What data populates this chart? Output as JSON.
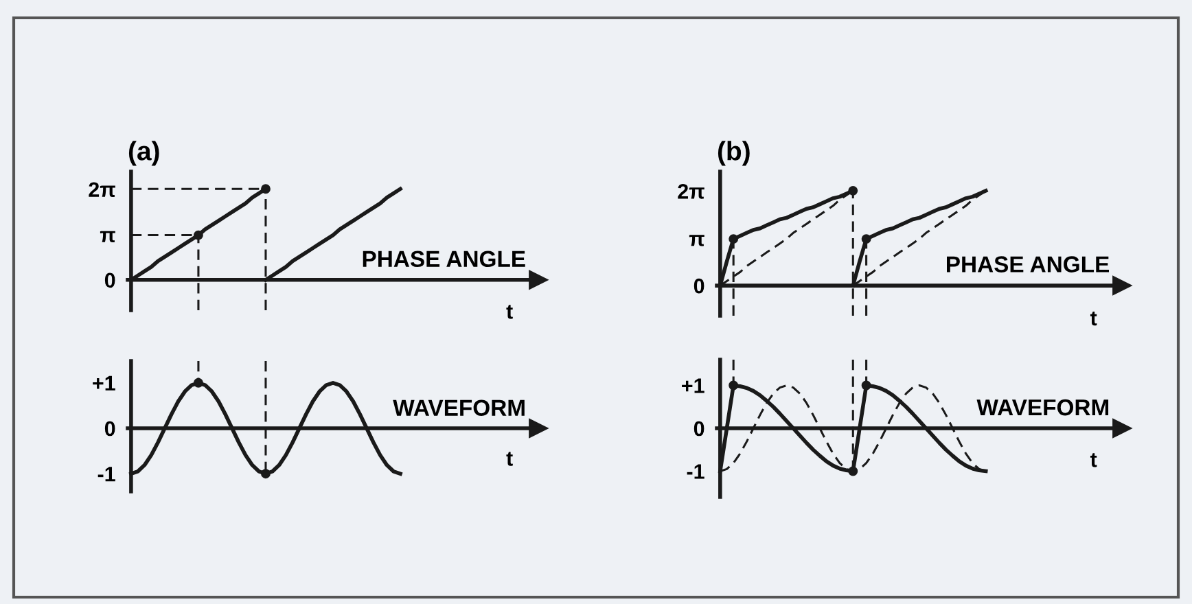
{
  "chart_data": [
    {
      "type": "line",
      "title": "(a)",
      "xlabel": "t",
      "ylabel": "PHASE ANGLE",
      "ylim": [
        -2.1,
        7.5
      ],
      "yticks": [
        0,
        {
          "value": 3.14,
          "label": "π"
        },
        {
          "value": 6.28,
          "label": "2π"
        }
      ],
      "tick_labels": "y",
      "grid": false,
      "marker": "none",
      "categories": [
        null,
        null,
        null,
        null,
        null,
        null,
        null,
        null,
        null,
        null,
        null,
        null,
        null,
        null,
        null,
        null,
        null,
        null,
        null,
        null,
        null,
        null,
        null,
        null,
        null,
        null,
        null,
        null,
        null,
        null,
        null,
        null,
        null,
        null,
        null,
        null,
        null,
        null,
        null,
        null,
        null,
        null,
        null,
        null,
        null,
        null,
        null,
        null,
        null,
        null,
        null,
        null,
        null,
        null,
        null,
        null,
        null,
        null,
        null,
        null,
        null
      ],
      "series": [
        {
          "color": "#1a1a1a",
          "line_style": "solid",
          "values": [
            0,
            0.3,
            0.6,
            0.9,
            1.3,
            1.6,
            1.9,
            2.2,
            2.5,
            2.8,
            3.1,
            3.5,
            3.8,
            4.1,
            4.4,
            4.7,
            5.0,
            5.3,
            5.7,
            6.0,
            6.3,
            null,
            null,
            null,
            null,
            null,
            null,
            null,
            null,
            null,
            null,
            null,
            null,
            null,
            null,
            null,
            null,
            null,
            null,
            null,
            null,
            null,
            null,
            null,
            null,
            null,
            null,
            null,
            null,
            null,
            null,
            null,
            null,
            null,
            null,
            null,
            null,
            null,
            null,
            null,
            null
          ]
        },
        {
          "color": "#1a1a1a",
          "line_style": "solid",
          "values": [
            null,
            null,
            null,
            null,
            null,
            null,
            null,
            null,
            null,
            null,
            null,
            null,
            null,
            null,
            null,
            null,
            null,
            null,
            null,
            null,
            0,
            0.3,
            0.6,
            0.9,
            1.3,
            1.6,
            1.9,
            2.2,
            2.5,
            2.8,
            3.1,
            3.5,
            3.8,
            4.1,
            4.4,
            4.7,
            5.0,
            5.3,
            5.7,
            6.0,
            6.3,
            null,
            null,
            null,
            null,
            null,
            null,
            null,
            null,
            null,
            null,
            null,
            null,
            null,
            null,
            null,
            null,
            null,
            null,
            null,
            null
          ]
        },
        {
          "color": "#1a1a1a",
          "line_style": "dashed",
          "values": [
            3.1,
            3.1,
            3.1,
            3.1,
            3.1,
            3.1,
            3.1,
            3.1,
            3.1,
            3.1,
            3.1,
            null,
            null,
            null,
            null,
            null,
            null,
            null,
            null,
            null,
            null,
            null,
            null,
            null,
            null,
            null,
            null,
            null,
            null,
            null,
            null,
            null,
            null,
            null,
            null,
            null,
            null,
            null,
            null,
            null,
            null,
            null,
            null,
            null,
            null,
            null,
            null,
            null,
            null,
            null,
            null,
            null,
            null,
            null,
            null,
            null,
            null,
            null,
            null,
            null,
            null
          ]
        },
        {
          "color": "#1a1a1a",
          "line_style": "dashed",
          "values": [
            6.3,
            6.3,
            6.3,
            6.3,
            6.3,
            6.3,
            6.3,
            6.3,
            6.3,
            6.3,
            6.3,
            6.3,
            6.3,
            6.3,
            6.3,
            6.3,
            6.3,
            6.3,
            6.3,
            6.3,
            6.3,
            null,
            null,
            null,
            null,
            null,
            null,
            null,
            null,
            null,
            null,
            null,
            null,
            null,
            null,
            null,
            null,
            null,
            null,
            null,
            null,
            null,
            null,
            null,
            null,
            null,
            null,
            null,
            null,
            null,
            null,
            null,
            null,
            null,
            null,
            null,
            null,
            null,
            null,
            null,
            null
          ]
        },
        {
          "type": "lollipop",
          "color": "#1a1a1a",
          "line_style": "dashed",
          "marker": "circle",
          "values": [
            null,
            null,
            null,
            null,
            null,
            null,
            null,
            null,
            null,
            null,
            3.1,
            null,
            null,
            null,
            null,
            null,
            null,
            null,
            null,
            null,
            6.3,
            null,
            null,
            null,
            null,
            null,
            null,
            null,
            null,
            null,
            null,
            null,
            null,
            null,
            null,
            null,
            null,
            null,
            null,
            null,
            null,
            null,
            null,
            null,
            null,
            null,
            null,
            null,
            null,
            null,
            null,
            null,
            null,
            null,
            null,
            null,
            null,
            null,
            null,
            null,
            null
          ]
        }
      ]
    },
    {
      "type": "line",
      "xlabel": "t",
      "ylabel": "WAVEFORM",
      "ylim": [
        -1.39,
        1.48
      ],
      "yticks": [
        {
          "value": -1,
          "label": "-1"
        },
        0,
        {
          "value": 1,
          "label": "+1"
        }
      ],
      "tick_labels": "y",
      "grid": false,
      "marker": "none",
      "categories": [
        null,
        null,
        null,
        null,
        null,
        null,
        null,
        null,
        null,
        null,
        null,
        null,
        null,
        null,
        null,
        null,
        null,
        null,
        null,
        null,
        null,
        null,
        null,
        null,
        null,
        null,
        null,
        null,
        null,
        null,
        null,
        null,
        null,
        null,
        null,
        null,
        null,
        null,
        null,
        null,
        null,
        null,
        null,
        null,
        null,
        null,
        null,
        null,
        null,
        null,
        null,
        null,
        null,
        null,
        null,
        null,
        null,
        null,
        null,
        null,
        null
      ],
      "series": [
        {
          "color": "#1a1a1a",
          "line_style": "solid",
          "values": [
            -1,
            -0.95,
            -0.81,
            -0.59,
            -0.31,
            0,
            0.31,
            0.59,
            0.81,
            0.95,
            1,
            0.95,
            0.81,
            0.59,
            0.31,
            0,
            -0.31,
            -0.59,
            -0.81,
            -0.95,
            -1,
            -0.95,
            -0.81,
            -0.59,
            -0.31,
            0,
            0.31,
            0.59,
            0.81,
            0.95,
            1,
            0.95,
            0.81,
            0.59,
            0.31,
            0,
            -0.31,
            -0.59,
            -0.81,
            -0.95,
            -1,
            null,
            null,
            null,
            null,
            null,
            null,
            null,
            null,
            null,
            null,
            null,
            null,
            null,
            null,
            null,
            null,
            null,
            null,
            null,
            null
          ]
        },
        {
          "type": "lollipop",
          "color": "#1a1a1a",
          "line_style": "dashed",
          "marker": "circle",
          "values": [
            null,
            null,
            null,
            null,
            null,
            null,
            null,
            null,
            null,
            null,
            1,
            null,
            null,
            null,
            null,
            null,
            null,
            null,
            null,
            null,
            -1,
            null,
            null,
            null,
            null,
            null,
            null,
            null,
            null,
            null,
            null,
            null,
            null,
            null,
            null,
            null,
            null,
            null,
            null,
            null,
            null,
            null,
            null,
            null,
            null,
            null,
            null,
            null,
            null,
            null,
            null,
            null,
            null,
            null,
            null,
            null,
            null,
            null,
            null,
            null,
            null
          ]
        }
      ]
    },
    {
      "type": "line",
      "title": "(b)",
      "xlabel": "t",
      "ylabel": "PHASE ANGLE",
      "ylim": [
        -2.0,
        7.57
      ],
      "yticks": [
        0,
        {
          "value": 3.14,
          "label": "π"
        },
        {
          "value": 6.28,
          "label": "2π"
        }
      ],
      "tick_labels": "y",
      "grid": false,
      "marker": "none",
      "categories": [
        null,
        null,
        null,
        null,
        null,
        null,
        null,
        null,
        null,
        null,
        null,
        null,
        null,
        null,
        null,
        null,
        null,
        null,
        null,
        null,
        null,
        null,
        null,
        null,
        null,
        null,
        null,
        null,
        null,
        null,
        null,
        null,
        null,
        null,
        null,
        null,
        null,
        null,
        null,
        null,
        null,
        null,
        null,
        null,
        null,
        null,
        null,
        null,
        null,
        null,
        null,
        null,
        null,
        null,
        null,
        null,
        null,
        null,
        null,
        null,
        null
      ],
      "series": [
        {
          "color": "#1a1a1a",
          "line_style": "solid",
          "values": [
            0,
            1.6,
            3.1,
            3.3,
            3.5,
            3.7,
            3.8,
            4.0,
            4.2,
            4.4,
            4.5,
            4.7,
            4.9,
            5.1,
            5.2,
            5.4,
            5.6,
            5.8,
            5.9,
            6.1,
            6.3,
            null,
            null,
            null,
            null,
            null,
            null,
            null,
            null,
            null,
            null,
            null,
            null,
            null,
            null,
            null,
            null,
            null,
            null,
            null,
            null,
            null,
            null,
            null,
            null,
            null,
            null,
            null,
            null,
            null,
            null,
            null,
            null,
            null,
            null,
            null,
            null,
            null,
            null,
            null,
            null
          ]
        },
        {
          "color": "#1a1a1a",
          "line_style": "solid",
          "values": [
            null,
            null,
            null,
            null,
            null,
            null,
            null,
            null,
            null,
            null,
            null,
            null,
            null,
            null,
            null,
            null,
            null,
            null,
            null,
            null,
            0,
            1.6,
            3.1,
            3.3,
            3.5,
            3.7,
            3.8,
            4.0,
            4.2,
            4.4,
            4.5,
            4.7,
            4.9,
            5.1,
            5.2,
            5.4,
            5.6,
            5.8,
            5.9,
            6.1,
            6.3,
            null,
            null,
            null,
            null,
            null,
            null,
            null,
            null,
            null,
            null,
            null,
            null,
            null,
            null,
            null,
            null,
            null,
            null,
            null,
            null
          ]
        },
        {
          "color": "#1a1a1a",
          "line_style": "dashed",
          "values": [
            0,
            0.3,
            0.6,
            0.9,
            1.3,
            1.6,
            1.9,
            2.2,
            2.5,
            2.8,
            3.1,
            3.5,
            3.8,
            4.1,
            4.4,
            4.7,
            5.0,
            5.3,
            5.7,
            6.0,
            6.3,
            null,
            null,
            null,
            null,
            null,
            null,
            null,
            null,
            null,
            null,
            null,
            null,
            null,
            null,
            null,
            null,
            null,
            null,
            null,
            null,
            null,
            null,
            null,
            null,
            null,
            null,
            null,
            null,
            null,
            null,
            null,
            null,
            null,
            null,
            null,
            null,
            null,
            null,
            null,
            null
          ]
        },
        {
          "color": "#1a1a1a",
          "line_style": "dashed",
          "values": [
            null,
            null,
            null,
            null,
            null,
            null,
            null,
            null,
            null,
            null,
            null,
            null,
            null,
            null,
            null,
            null,
            null,
            null,
            null,
            null,
            0,
            0.3,
            0.6,
            0.9,
            1.3,
            1.6,
            1.9,
            2.2,
            2.5,
            2.8,
            3.1,
            3.5,
            3.8,
            4.1,
            4.4,
            4.7,
            5.0,
            5.3,
            5.7,
            6.0,
            6.3,
            null,
            null,
            null,
            null,
            null,
            null,
            null,
            null,
            null,
            null,
            null,
            null,
            null,
            null,
            null,
            null,
            null,
            null,
            null,
            null
          ]
        },
        {
          "type": "lollipop",
          "color": "#1a1a1a",
          "line_style": "dashed",
          "marker": "circle",
          "values": [
            null,
            null,
            3.1,
            null,
            null,
            null,
            null,
            null,
            null,
            null,
            null,
            null,
            null,
            null,
            null,
            null,
            null,
            null,
            null,
            null,
            6.3,
            null,
            3.1,
            null,
            null,
            null,
            null,
            null,
            null,
            null,
            null,
            null,
            null,
            null,
            null,
            null,
            null,
            null,
            null,
            null,
            null,
            null,
            null,
            null,
            null,
            null,
            null,
            null,
            null,
            null,
            null,
            null,
            null,
            null,
            null,
            null,
            null,
            null,
            null,
            null,
            null
          ]
        }
      ]
    },
    {
      "type": "line",
      "xlabel": "t",
      "ylabel": "WAVEFORM",
      "ylim": [
        -1.6,
        1.6
      ],
      "yticks": [
        {
          "value": -1,
          "label": "-1"
        },
        0,
        {
          "value": 1,
          "label": "+1"
        }
      ],
      "tick_labels": "y",
      "grid": false,
      "marker": "none",
      "categories": [
        null,
        null,
        null,
        null,
        null,
        null,
        null,
        null,
        null,
        null,
        null,
        null,
        null,
        null,
        null,
        null,
        null,
        null,
        null,
        null,
        null,
        null,
        null,
        null,
        null,
        null,
        null,
        null,
        null,
        null,
        null,
        null,
        null,
        null,
        null,
        null,
        null,
        null,
        null,
        null,
        null,
        null,
        null,
        null,
        null,
        null,
        null,
        null,
        null,
        null,
        null,
        null,
        null,
        null,
        null,
        null,
        null,
        null,
        null,
        null,
        null
      ],
      "series": [
        {
          "color": "#1a1a1a",
          "line_style": "solid",
          "values": [
            -1,
            0,
            1,
            0.98,
            0.94,
            0.87,
            0.77,
            0.64,
            0.5,
            0.34,
            0.17,
            0,
            -0.17,
            -0.34,
            -0.5,
            -0.64,
            -0.77,
            -0.87,
            -0.94,
            -0.98,
            -1,
            0,
            1,
            0.98,
            0.94,
            0.87,
            0.77,
            0.64,
            0.5,
            0.34,
            0.17,
            0,
            -0.17,
            -0.34,
            -0.5,
            -0.64,
            -0.77,
            -0.87,
            -0.94,
            -0.98,
            -1,
            null,
            null,
            null,
            null,
            null,
            null,
            null,
            null,
            null,
            null,
            null,
            null,
            null,
            null,
            null,
            null,
            null,
            null,
            null,
            null
          ]
        },
        {
          "color": "#1a1a1a",
          "line_style": "dashed",
          "values": [
            -1,
            -0.95,
            -0.81,
            -0.59,
            -0.31,
            0,
            0.31,
            0.59,
            0.81,
            0.95,
            1,
            0.95,
            0.81,
            0.59,
            0.31,
            0,
            -0.31,
            -0.59,
            -0.81,
            -0.95,
            -1,
            -0.95,
            -0.81,
            -0.59,
            -0.31,
            0,
            0.31,
            0.59,
            0.81,
            0.95,
            1,
            0.95,
            0.81,
            0.59,
            0.31,
            0,
            -0.31,
            -0.59,
            -0.81,
            -0.95,
            -1,
            null,
            null,
            null,
            null,
            null,
            null,
            null,
            null,
            null,
            null,
            null,
            null,
            null,
            null,
            null,
            null,
            null,
            null,
            null,
            null
          ]
        },
        {
          "type": "lollipop",
          "color": "#1a1a1a",
          "line_style": "dashed",
          "marker": "circle",
          "values": [
            null,
            null,
            1,
            null,
            null,
            null,
            null,
            null,
            null,
            null,
            null,
            null,
            null,
            null,
            null,
            null,
            null,
            null,
            null,
            null,
            -1,
            null,
            1,
            null,
            null,
            null,
            null,
            null,
            null,
            null,
            null,
            null,
            null,
            null,
            null,
            null,
            null,
            null,
            null,
            null,
            null,
            null,
            null,
            null,
            null,
            null,
            null,
            null,
            null,
            null,
            null,
            null,
            null,
            null,
            null,
            null,
            null,
            null,
            null,
            null,
            null
          ]
        }
      ]
    }
  ]
}
